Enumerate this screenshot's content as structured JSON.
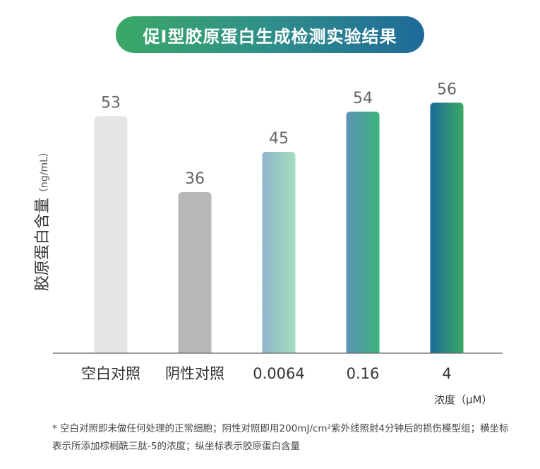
{
  "header": {
    "title": "促I型胶原蛋白生成检测实验结果"
  },
  "chart_data": {
    "type": "bar",
    "categories": [
      "空白对照",
      "阴性对照",
      "0.0064",
      "0.16",
      "4"
    ],
    "values": [
      53,
      36,
      45,
      54,
      56
    ],
    "title": "促I型胶原蛋白生成检测实验结果",
    "ylabel": "胶原蛋白含量",
    "ylabel_unit": "（ng/mL）",
    "xlabel": "浓度（μM）",
    "ylim": [
      0,
      60
    ],
    "grid": false,
    "bar_colors": [
      [
        "#e6e6e6",
        "#e6e6e6"
      ],
      [
        "#b8b8b8",
        "#b8b8b8"
      ],
      [
        "#8fb7cc",
        "#a6dcc0"
      ],
      [
        "#5d93b8",
        "#3bb27a"
      ],
      [
        "#1c6a9a",
        "#3aaa66"
      ]
    ],
    "value_label_color": "#666666"
  },
  "footnote": {
    "text": "* 空白对照即未做任何处理的正常细胞；阴性对照即用200mJ/cm²紫外线照射4分钟后的损伤模型组；横坐标表示所添加棕榈酰三肽-5的浓度；纵坐标表示胶原蛋白含量"
  },
  "colors": {
    "title_gradient_start": "#3aa866",
    "title_gradient_end": "#1f6a9a"
  }
}
